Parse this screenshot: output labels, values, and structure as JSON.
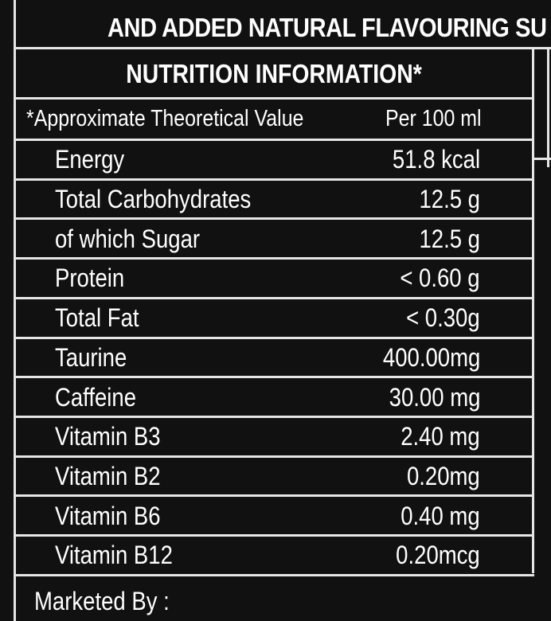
{
  "top_line": "AND ADDED NATURAL FLAVOURING SU",
  "table": {
    "title": "NUTRITION INFORMATION*",
    "header": {
      "left": "*Approximate Theoretical Value",
      "right": "Per 100 ml"
    },
    "rows": [
      {
        "name": "Energy",
        "value": "51.8 kcal"
      },
      {
        "name": "Total Carbohydrates",
        "value": "12.5 g"
      },
      {
        "name": "of which Sugar",
        "value": "12.5 g"
      },
      {
        "name": "Protein",
        "value": "< 0.60 g"
      },
      {
        "name": "Total Fat",
        "value": "< 0.30g"
      },
      {
        "name": "Taurine",
        "value": "400.00mg"
      },
      {
        "name": "Caffeine",
        "value": "30.00 mg"
      },
      {
        "name": "Vitamin B3",
        "value": "2.40 mg"
      },
      {
        "name": "Vitamin B2",
        "value": "0.20mg"
      },
      {
        "name": "Vitamin B6",
        "value": "0.40 mg"
      },
      {
        "name": "Vitamin B12",
        "value": "0.20mcg"
      }
    ]
  },
  "footer": "Marketed By :",
  "colors": {
    "background": "#111111",
    "text": "#ffffff",
    "lines": "#e6e6e6"
  }
}
